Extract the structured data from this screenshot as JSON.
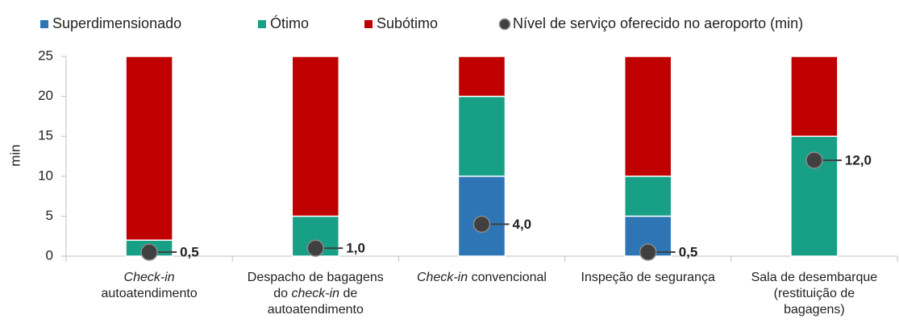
{
  "chart_data": {
    "type": "bar",
    "stacked": true,
    "ylabel": "min",
    "categories": [
      [
        [
          {
            "text": "Check-in",
            "italic": true
          }
        ],
        [
          {
            "text": "autoatendimento"
          }
        ]
      ],
      [
        [
          {
            "text": "Despacho de bagagens"
          }
        ],
        [
          {
            "text": "do "
          },
          {
            "text": "check-in",
            "italic": true
          },
          {
            "text": " de"
          }
        ],
        [
          {
            "text": "autoatendimento"
          }
        ]
      ],
      [
        [
          {
            "text": "Check-in",
            "italic": true
          },
          {
            "text": " convencional"
          }
        ]
      ],
      [
        [
          {
            "text": "Inspeção de segurança"
          }
        ]
      ],
      [
        [
          {
            "text": "Sala de desembarque"
          }
        ],
        [
          {
            "text": "(restituição de"
          }
        ],
        [
          {
            "text": "bagagens)"
          }
        ]
      ]
    ],
    "series": [
      {
        "name": "Superdimensionado",
        "color": "#2e75b6",
        "values": [
          0,
          0,
          10,
          5,
          0
        ]
      },
      {
        "name": "Ótimo",
        "color": "#17a085",
        "values": [
          2,
          5,
          10,
          5,
          15
        ]
      },
      {
        "name": "Subótimo",
        "color": "#c00000",
        "values": [
          23,
          20,
          5,
          15,
          10
        ]
      },
      {
        "name": "Nível de serviço oferecido no aeroporto (min)",
        "type": "scatter",
        "color": "#404040",
        "values": [
          0.5,
          1.0,
          4.0,
          0.5,
          12.0
        ],
        "value_labels": [
          "0,5",
          "1,0",
          "4,0",
          "0,5",
          "12,0"
        ]
      }
    ],
    "ylim": [
      0,
      25
    ],
    "yticks": [
      0,
      5,
      10,
      15,
      20,
      25
    ],
    "grid": false,
    "legend": "top"
  }
}
